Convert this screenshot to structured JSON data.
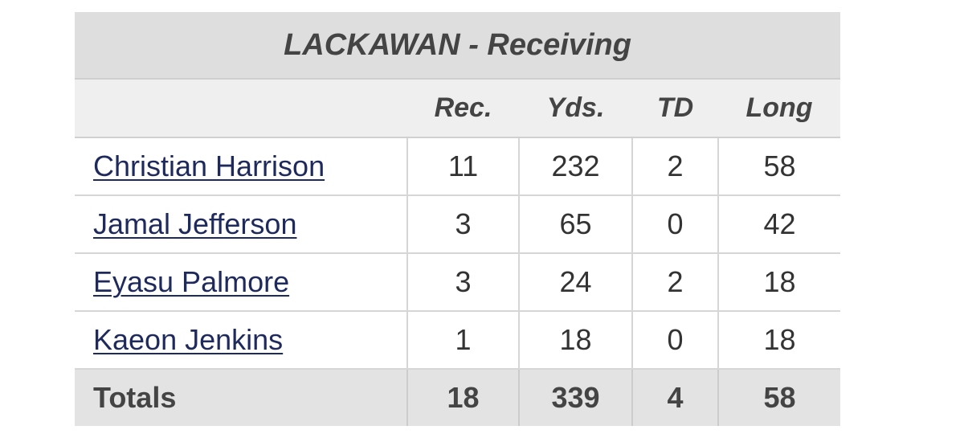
{
  "table": {
    "title": "LACKAWAN - Receiving",
    "columns": [
      "Rec.",
      "Yds.",
      "TD",
      "Long"
    ],
    "rows": [
      {
        "name": "Christian Harrison",
        "rec": "11",
        "yds": "232",
        "td": "2",
        "long": "58"
      },
      {
        "name": "Jamal Jefferson",
        "rec": "3",
        "yds": "65",
        "td": "0",
        "long": "42"
      },
      {
        "name": "Eyasu Palmore",
        "rec": "3",
        "yds": "24",
        "td": "2",
        "long": "18"
      },
      {
        "name": "Kaeon Jenkins",
        "rec": "1",
        "yds": "18",
        "td": "0",
        "long": "18"
      }
    ],
    "totals": {
      "label": "Totals",
      "rec": "18",
      "yds": "339",
      "td": "4",
      "long": "58"
    }
  }
}
